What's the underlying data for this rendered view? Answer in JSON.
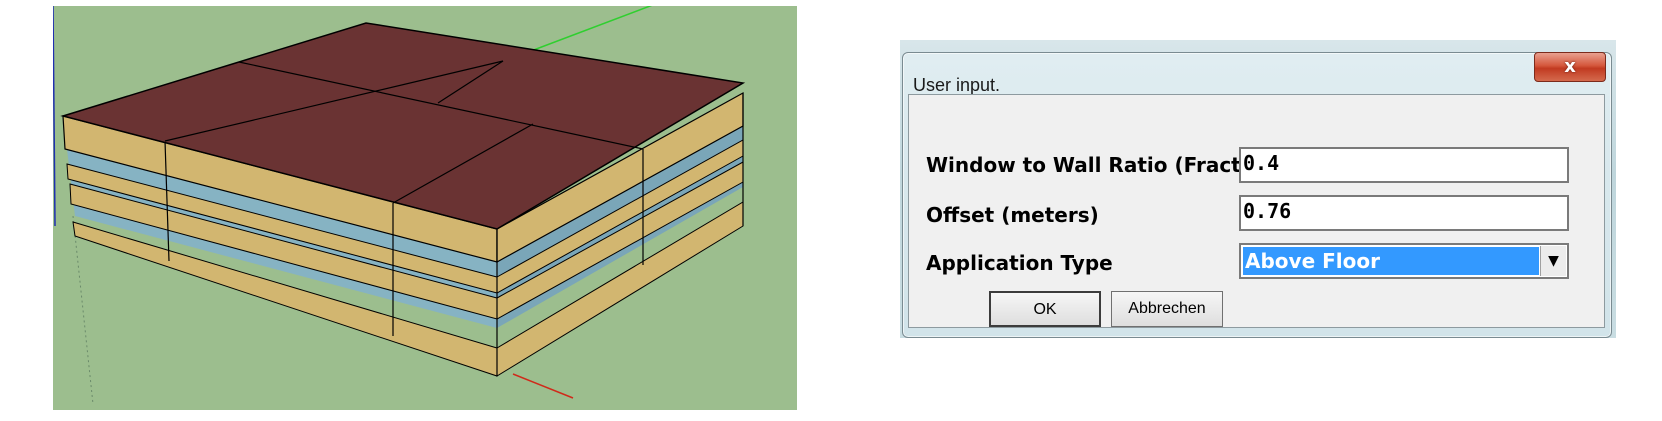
{
  "viewport": {
    "background_color": "#9cbe8e",
    "roof_color": "#6a3333",
    "slab_color": "#d2b670",
    "glass_color": "#7aa6b8"
  },
  "dialog": {
    "title": "User input.",
    "close_label": "x",
    "fields": {
      "wwr_label": "Window to Wall Ratio (Fraction)",
      "wwr_value": "0.4",
      "offset_label": "Offset (meters)",
      "offset_value": "0.76",
      "app_type_label": "Application Type",
      "app_type_value": "Above Floor"
    },
    "buttons": {
      "ok": "OK",
      "cancel": "Abbrechen"
    },
    "colors": {
      "selection": "#3399ff",
      "close": "#c13a21"
    }
  }
}
